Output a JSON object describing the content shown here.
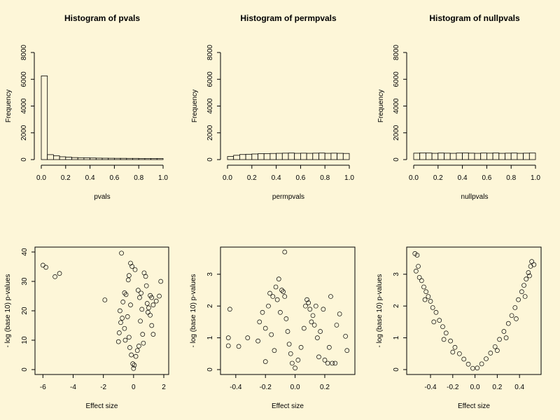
{
  "chart_data": [
    {
      "id": "hist-pvals",
      "type": "bar",
      "title": "Histogram of pvals",
      "xlabel": "pvals",
      "ylabel": "Frequency",
      "xlim": [
        0,
        1
      ],
      "ylim": [
        0,
        8000
      ],
      "xticks": [
        "0.0",
        "0.2",
        "0.4",
        "0.6",
        "0.8",
        "1.0"
      ],
      "yticks": [
        "0",
        "2000",
        "4000",
        "6000",
        "8000"
      ],
      "bin_width": 0.05,
      "values": [
        6250,
        370,
        280,
        210,
        180,
        150,
        140,
        130,
        120,
        110,
        105,
        100,
        95,
        95,
        90,
        90,
        85,
        85,
        85,
        85
      ]
    },
    {
      "id": "hist-permpvals",
      "type": "bar",
      "title": "Histogram of permpvals",
      "xlabel": "permpvals",
      "ylabel": "Frequency",
      "xlim": [
        0,
        1
      ],
      "ylim": [
        0,
        8000
      ],
      "xticks": [
        "0.0",
        "0.2",
        "0.4",
        "0.6",
        "0.8",
        "1.0"
      ],
      "yticks": [
        "0",
        "2000",
        "4000",
        "6000",
        "8000"
      ],
      "bin_width": 0.05,
      "values": [
        230,
        320,
        380,
        400,
        420,
        440,
        450,
        460,
        470,
        480,
        490,
        470,
        480,
        470,
        480,
        490,
        470,
        480,
        470,
        460
      ]
    },
    {
      "id": "hist-nullpvals",
      "type": "bar",
      "title": "Histogram of nullpvals",
      "xlabel": "nullpvals",
      "ylabel": "Frequency",
      "xlim": [
        0,
        1
      ],
      "ylim": [
        0,
        8000
      ],
      "xticks": [
        "0.0",
        "0.2",
        "0.4",
        "0.6",
        "0.8",
        "1.0"
      ],
      "yticks": [
        "0",
        "2000",
        "4000",
        "6000",
        "8000"
      ],
      "bin_width": 0.05,
      "values": [
        480,
        500,
        490,
        470,
        490,
        480,
        470,
        490,
        500,
        480,
        470,
        490,
        480,
        500,
        470,
        480,
        490,
        470,
        480,
        490
      ]
    },
    {
      "id": "volcano-pvals",
      "type": "scatter",
      "title": "",
      "xlabel": "Effect size",
      "ylabel": "- log (base 10) p-values",
      "xlim": [
        -6.2,
        2
      ],
      "ylim": [
        0,
        40
      ],
      "xticks": [
        "-6",
        "-4",
        "-2",
        "0",
        "2"
      ],
      "yticks": [
        "0",
        "10",
        "20",
        "30",
        "40"
      ],
      "points": [
        [
          -6.0,
          35.5
        ],
        [
          -5.8,
          34.8
        ],
        [
          -5.2,
          31.6
        ],
        [
          -4.9,
          32.7
        ],
        [
          -1.9,
          23.7
        ],
        [
          -0.8,
          39.6
        ],
        [
          -0.6,
          26.1
        ],
        [
          -0.5,
          25.5
        ],
        [
          -0.2,
          36.2
        ],
        [
          -0.1,
          35.1
        ],
        [
          0.1,
          34.0
        ],
        [
          -0.3,
          32.0
        ],
        [
          -0.35,
          30.5
        ],
        [
          0.7,
          32.9
        ],
        [
          0.8,
          31.7
        ],
        [
          0.85,
          28.5
        ],
        [
          1.1,
          25.2
        ],
        [
          1.2,
          24.5
        ],
        [
          1.3,
          22.0
        ],
        [
          1.5,
          23.3
        ],
        [
          1.7,
          25.0
        ],
        [
          1.8,
          30.0
        ],
        [
          1.0,
          21.0
        ],
        [
          1.1,
          18.5
        ],
        [
          1.2,
          15.0
        ],
        [
          1.3,
          12.0
        ],
        [
          -0.9,
          20.0
        ],
        [
          -0.85,
          16.0
        ],
        [
          -0.95,
          12.5
        ],
        [
          -1.0,
          9.5
        ],
        [
          -0.6,
          14.0
        ],
        [
          -0.55,
          10.0
        ],
        [
          0.6,
          12.0
        ],
        [
          0.65,
          9.0
        ],
        [
          -0.2,
          22.0
        ],
        [
          0.3,
          27.0
        ],
        [
          0.4,
          24.5
        ],
        [
          0.5,
          26.0
        ],
        [
          -0.4,
          18.0
        ],
        [
          0.45,
          16.5
        ],
        [
          -0.3,
          11.0
        ],
        [
          0.35,
          8.0
        ],
        [
          -0.15,
          5.0
        ],
        [
          0.15,
          4.5
        ],
        [
          -0.05,
          2.0
        ],
        [
          0.05,
          1.5
        ],
        [
          0.0,
          0.4
        ],
        [
          -0.25,
          7.5
        ],
        [
          0.25,
          6.5
        ],
        [
          0.9,
          22.5
        ],
        [
          -0.7,
          23.0
        ],
        [
          0.95,
          19.5
        ],
        [
          -0.75,
          17.5
        ],
        [
          0.55,
          20.5
        ]
      ]
    },
    {
      "id": "volcano-permpvals",
      "type": "scatter",
      "title": "",
      "xlabel": "Effect size",
      "ylabel": "- log (base 10) p-values",
      "xlim": [
        -0.47,
        0.37
      ],
      "ylim": [
        0,
        3.7
      ],
      "xticks": [
        "-0.4",
        "-0.2",
        "0.0",
        "0.2"
      ],
      "yticks": [
        "0",
        "1",
        "2",
        "3"
      ],
      "points": [
        [
          -0.45,
          1.0
        ],
        [
          -0.45,
          0.75
        ],
        [
          -0.44,
          1.9
        ],
        [
          -0.38,
          0.73
        ],
        [
          -0.32,
          1.0
        ],
        [
          -0.25,
          0.9
        ],
        [
          -0.24,
          1.5
        ],
        [
          -0.2,
          1.3
        ],
        [
          -0.18,
          2.0
        ],
        [
          -0.17,
          2.4
        ],
        [
          -0.15,
          2.3
        ],
        [
          -0.13,
          2.6
        ],
        [
          -0.12,
          2.2
        ],
        [
          -0.11,
          2.85
        ],
        [
          -0.1,
          1.8
        ],
        [
          -0.09,
          2.5
        ],
        [
          -0.08,
          2.45
        ],
        [
          -0.07,
          2.3
        ],
        [
          -0.07,
          3.7
        ],
        [
          -0.06,
          1.6
        ],
        [
          -0.05,
          1.2
        ],
        [
          -0.04,
          0.8
        ],
        [
          -0.03,
          0.5
        ],
        [
          -0.02,
          0.2
        ],
        [
          0.0,
          0.05
        ],
        [
          0.02,
          0.3
        ],
        [
          0.04,
          0.7
        ],
        [
          0.06,
          1.3
        ],
        [
          0.07,
          2.0
        ],
        [
          0.08,
          2.2
        ],
        [
          0.09,
          2.1
        ],
        [
          0.1,
          1.9
        ],
        [
          0.11,
          1.5
        ],
        [
          0.12,
          1.7
        ],
        [
          0.14,
          2.0
        ],
        [
          0.15,
          1.0
        ],
        [
          0.17,
          1.2
        ],
        [
          0.19,
          1.9
        ],
        [
          0.2,
          0.3
        ],
        [
          0.22,
          0.2
        ],
        [
          0.24,
          2.3
        ],
        [
          0.25,
          0.2
        ],
        [
          0.27,
          0.2
        ],
        [
          0.3,
          1.75
        ],
        [
          0.34,
          1.05
        ],
        [
          0.35,
          0.6
        ],
        [
          -0.2,
          0.25
        ],
        [
          -0.14,
          0.6
        ],
        [
          0.16,
          0.4
        ],
        [
          0.23,
          0.7
        ],
        [
          0.28,
          1.4
        ],
        [
          -0.22,
          1.8
        ],
        [
          -0.16,
          1.1
        ],
        [
          0.13,
          1.4
        ]
      ]
    },
    {
      "id": "volcano-nullpvals",
      "type": "scatter",
      "title": "",
      "xlabel": "Effect size",
      "ylabel": "- log (base 10) p-values",
      "xlim": [
        -0.57,
        0.55
      ],
      "ylim": [
        0,
        3.7
      ],
      "xticks": [
        "-0.4",
        "-0.2",
        "0.0",
        "0.2",
        "0.4"
      ],
      "yticks": [
        "0",
        "1",
        "2",
        "3"
      ],
      "points": [
        [
          -0.54,
          3.65
        ],
        [
          -0.52,
          3.6
        ],
        [
          -0.51,
          3.25
        ],
        [
          -0.53,
          3.1
        ],
        [
          -0.5,
          2.9
        ],
        [
          -0.48,
          2.8
        ],
        [
          -0.46,
          2.6
        ],
        [
          -0.44,
          2.45
        ],
        [
          -0.42,
          2.3
        ],
        [
          -0.4,
          2.15
        ],
        [
          -0.38,
          1.95
        ],
        [
          -0.35,
          1.8
        ],
        [
          -0.32,
          1.55
        ],
        [
          -0.29,
          1.35
        ],
        [
          -0.26,
          1.15
        ],
        [
          -0.22,
          0.9
        ],
        [
          -0.18,
          0.7
        ],
        [
          -0.14,
          0.5
        ],
        [
          -0.1,
          0.33
        ],
        [
          -0.06,
          0.17
        ],
        [
          -0.02,
          0.04
        ],
        [
          0.02,
          0.05
        ],
        [
          0.06,
          0.18
        ],
        [
          0.1,
          0.34
        ],
        [
          0.14,
          0.52
        ],
        [
          0.18,
          0.72
        ],
        [
          0.22,
          0.95
        ],
        [
          0.26,
          1.2
        ],
        [
          0.3,
          1.45
        ],
        [
          0.33,
          1.7
        ],
        [
          0.36,
          1.95
        ],
        [
          0.39,
          2.2
        ],
        [
          0.42,
          2.45
        ],
        [
          0.44,
          2.65
        ],
        [
          0.46,
          2.85
        ],
        [
          0.48,
          3.05
        ],
        [
          0.5,
          3.25
        ],
        [
          0.51,
          3.4
        ],
        [
          0.53,
          3.3
        ],
        [
          0.49,
          2.95
        ],
        [
          -0.45,
          2.2
        ],
        [
          -0.37,
          1.5
        ],
        [
          -0.28,
          0.95
        ],
        [
          -0.2,
          0.55
        ],
        [
          0.2,
          0.6
        ],
        [
          0.28,
          1.0
        ],
        [
          0.37,
          1.6
        ],
        [
          0.45,
          2.3
        ]
      ]
    }
  ]
}
